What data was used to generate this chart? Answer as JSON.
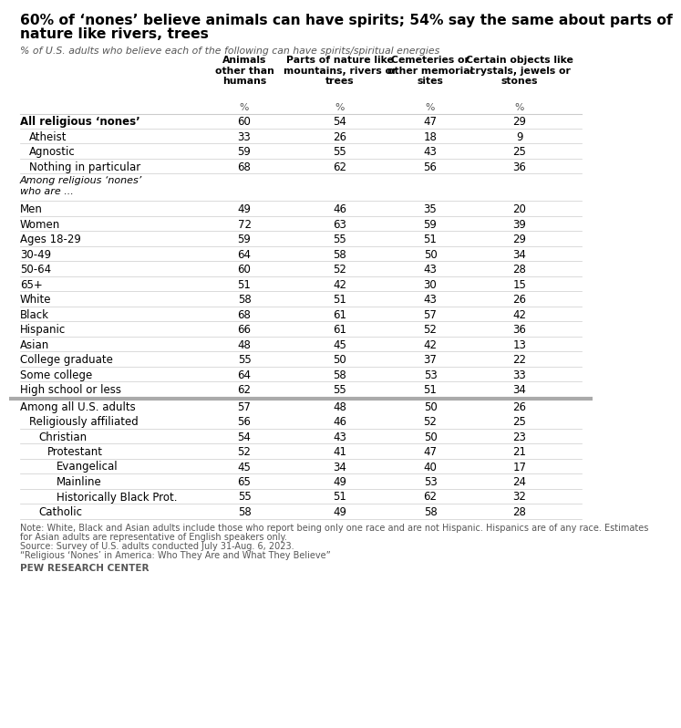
{
  "title_line1": "60% of ‘nones’ believe animals can have spirits; 54% say the same about parts of",
  "title_line2": "nature like rivers, trees",
  "subtitle": "% of U.S. adults who believe each of the following can have spirits/spiritual energies",
  "col_headers": [
    "Animals\nother than\nhumans",
    "Parts of nature like\nmountains, rivers or\ntrees",
    "Cemeteries or\nother memorial\nsites",
    "Certain objects like\ncrystals, jewels or\nstones"
  ],
  "rows": [
    {
      "label": "All religious ‘nones’",
      "indent": 0,
      "bold": true,
      "italic": false,
      "values": [
        60,
        54,
        47,
        29
      ],
      "thick_sep_before": false,
      "no_values": false
    },
    {
      "label": "Atheist",
      "indent": 1,
      "bold": false,
      "italic": false,
      "values": [
        33,
        26,
        18,
        9
      ],
      "thick_sep_before": false,
      "no_values": false
    },
    {
      "label": "Agnostic",
      "indent": 1,
      "bold": false,
      "italic": false,
      "values": [
        59,
        55,
        43,
        25
      ],
      "thick_sep_before": false,
      "no_values": false
    },
    {
      "label": "Nothing in particular",
      "indent": 1,
      "bold": false,
      "italic": false,
      "values": [
        68,
        62,
        56,
        36
      ],
      "thick_sep_before": false,
      "no_values": false
    },
    {
      "label": "Among religious ‘nones’\nwho are ...",
      "indent": 0,
      "bold": false,
      "italic": true,
      "values": null,
      "thick_sep_before": false,
      "no_values": true
    },
    {
      "label": "Men",
      "indent": 0,
      "bold": false,
      "italic": false,
      "values": [
        49,
        46,
        35,
        20
      ],
      "thick_sep_before": false,
      "no_values": false
    },
    {
      "label": "Women",
      "indent": 0,
      "bold": false,
      "italic": false,
      "values": [
        72,
        63,
        59,
        39
      ],
      "thick_sep_before": false,
      "no_values": false
    },
    {
      "label": "Ages 18-29",
      "indent": 0,
      "bold": false,
      "italic": false,
      "values": [
        59,
        55,
        51,
        29
      ],
      "thick_sep_before": false,
      "no_values": false
    },
    {
      "label": "30-49",
      "indent": 0,
      "bold": false,
      "italic": false,
      "values": [
        64,
        58,
        50,
        34
      ],
      "thick_sep_before": false,
      "no_values": false
    },
    {
      "label": "50-64",
      "indent": 0,
      "bold": false,
      "italic": false,
      "values": [
        60,
        52,
        43,
        28
      ],
      "thick_sep_before": false,
      "no_values": false
    },
    {
      "label": "65+",
      "indent": 0,
      "bold": false,
      "italic": false,
      "values": [
        51,
        42,
        30,
        15
      ],
      "thick_sep_before": false,
      "no_values": false
    },
    {
      "label": "White",
      "indent": 0,
      "bold": false,
      "italic": false,
      "values": [
        58,
        51,
        43,
        26
      ],
      "thick_sep_before": false,
      "no_values": false
    },
    {
      "label": "Black",
      "indent": 0,
      "bold": false,
      "italic": false,
      "values": [
        68,
        61,
        57,
        42
      ],
      "thick_sep_before": false,
      "no_values": false
    },
    {
      "label": "Hispanic",
      "indent": 0,
      "bold": false,
      "italic": false,
      "values": [
        66,
        61,
        52,
        36
      ],
      "thick_sep_before": false,
      "no_values": false
    },
    {
      "label": "Asian",
      "indent": 0,
      "bold": false,
      "italic": false,
      "values": [
        48,
        45,
        42,
        13
      ],
      "thick_sep_before": false,
      "no_values": false
    },
    {
      "label": "College graduate",
      "indent": 0,
      "bold": false,
      "italic": false,
      "values": [
        55,
        50,
        37,
        22
      ],
      "thick_sep_before": false,
      "no_values": false
    },
    {
      "label": "Some college",
      "indent": 0,
      "bold": false,
      "italic": false,
      "values": [
        64,
        58,
        53,
        33
      ],
      "thick_sep_before": false,
      "no_values": false
    },
    {
      "label": "High school or less",
      "indent": 0,
      "bold": false,
      "italic": false,
      "values": [
        62,
        55,
        51,
        34
      ],
      "thick_sep_before": false,
      "no_values": false
    },
    {
      "label": "Among all U.S. adults",
      "indent": 0,
      "bold": false,
      "italic": false,
      "values": [
        57,
        48,
        50,
        26
      ],
      "thick_sep_before": true,
      "no_values": false
    },
    {
      "label": "Religiously affiliated",
      "indent": 1,
      "bold": false,
      "italic": false,
      "values": [
        56,
        46,
        52,
        25
      ],
      "thick_sep_before": false,
      "no_values": false
    },
    {
      "label": "Christian",
      "indent": 2,
      "bold": false,
      "italic": false,
      "values": [
        54,
        43,
        50,
        23
      ],
      "thick_sep_before": false,
      "no_values": false
    },
    {
      "label": "Protestant",
      "indent": 3,
      "bold": false,
      "italic": false,
      "values": [
        52,
        41,
        47,
        21
      ],
      "thick_sep_before": false,
      "no_values": false
    },
    {
      "label": "Evangelical",
      "indent": 4,
      "bold": false,
      "italic": false,
      "values": [
        45,
        34,
        40,
        17
      ],
      "thick_sep_before": false,
      "no_values": false
    },
    {
      "label": "Mainline",
      "indent": 4,
      "bold": false,
      "italic": false,
      "values": [
        65,
        49,
        53,
        24
      ],
      "thick_sep_before": false,
      "no_values": false
    },
    {
      "label": "Historically Black Prot.",
      "indent": 4,
      "bold": false,
      "italic": false,
      "values": [
        55,
        51,
        62,
        32
      ],
      "thick_sep_before": false,
      "no_values": false
    },
    {
      "label": "Catholic",
      "indent": 2,
      "bold": false,
      "italic": false,
      "values": [
        58,
        49,
        58,
        28
      ],
      "thick_sep_before": false,
      "no_values": false
    }
  ],
  "note_lines": [
    "Note: White, Black and Asian adults include those who report being only one race and are not Hispanic. Hispanics are of any race. Estimates",
    "for Asian adults are representative of English speakers only.",
    "Source: Survey of U.S. adults conducted July 31-Aug. 6, 2023.",
    "“Religious ‘Nones’ in America: Who They Are and What They Believe”"
  ],
  "source_org": "PEW RESEARCH CENTER",
  "bg_color": "#ffffff",
  "text_color": "#000000",
  "gray_text": "#555555",
  "sep_light": "#cccccc",
  "sep_heavy": "#aaaaaa"
}
